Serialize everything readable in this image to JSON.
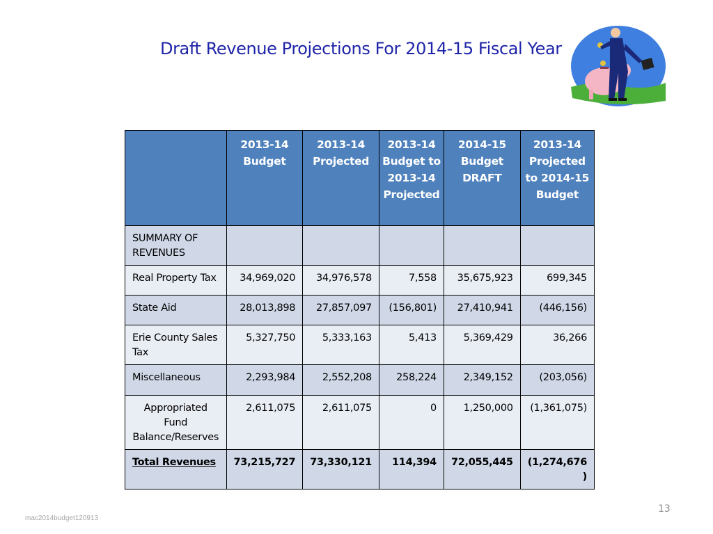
{
  "slide": {
    "title": "Draft Revenue Projections For 2014-15 Fiscal Year",
    "page_number": "13",
    "footer_left": "mac2014budget120913"
  },
  "table": {
    "headers": [
      "",
      "2013-14 Budget",
      "2013-14 Projected",
      "2013-14 Budget to 2013-14 Projected",
      "2014-15 Budget DRAFT",
      "2013-14 Projected to 2014-15 Budget"
    ],
    "rows": [
      {
        "label": "SUMMARY OF REVENUES",
        "values": [
          "",
          "",
          "",
          "",
          ""
        ]
      },
      {
        "label": "Real Property Tax",
        "values": [
          "34,969,020",
          "34,976,578",
          "7,558",
          "35,675,923",
          "699,345"
        ]
      },
      {
        "label": "State Aid",
        "values": [
          "28,013,898",
          "27,857,097",
          "(156,801)",
          "27,410,941",
          "(446,156)"
        ]
      },
      {
        "label": "Erie County Sales Tax",
        "values": [
          "5,327,750",
          "5,333,163",
          "5,413",
          "5,369,429",
          "36,266"
        ]
      },
      {
        "label": "Miscellaneous",
        "values": [
          "2,293,984",
          "2,552,208",
          "258,224",
          "2,349,152",
          "(203,056)"
        ]
      },
      {
        "label": "Appropriated Fund Balance/Reserves",
        "values": [
          "2,611,075",
          "2,611,075",
          "0",
          "1,250,000",
          "(1,361,075)"
        ]
      },
      {
        "label": "Total Revenues",
        "values": [
          "73,215,727",
          "73,330,121",
          "114,394",
          "72,055,445",
          "(1,274,676 )"
        ]
      }
    ]
  },
  "colors": {
    "title": "#1f25a8",
    "header_bg": "#4f81bd",
    "row_band_dark": "#d0d8e8",
    "row_band_light": "#e9edf4"
  },
  "clipart": {
    "icon": "businessman-piggy-bank-icon"
  }
}
